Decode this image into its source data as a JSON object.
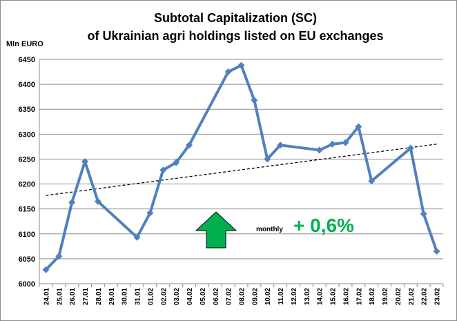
{
  "chart_data": {
    "type": "line",
    "title": [
      "Subtotal Capitalization (SC)",
      "of Ukrainian agri holdings listed on EU exchanges"
    ],
    "ylabel": "Mln EURO",
    "xlabel": "",
    "ylim": [
      6000,
      6450
    ],
    "yticks": [
      6000,
      6050,
      6100,
      6150,
      6200,
      6250,
      6300,
      6350,
      6400,
      6450
    ],
    "categories": [
      "24.01",
      "25.01",
      "26.01",
      "27.01",
      "28.01",
      "29.01",
      "30.01",
      "31.01",
      "01.02",
      "02.02",
      "03.02",
      "04.02",
      "05.02",
      "06.02",
      "07.02",
      "08.02",
      "09.02",
      "10.02",
      "11.02",
      "12.02",
      "13.02",
      "14.02",
      "15.02",
      "16.02",
      "17.02",
      "18.02",
      "19.02",
      "20.02",
      "21.02",
      "22.02",
      "23.02"
    ],
    "series": [
      {
        "values": [
          6028,
          6055,
          6163,
          6245,
          6165,
          null,
          null,
          6093,
          6142,
          6228,
          6243,
          6278,
          null,
          null,
          6425,
          6438,
          6368,
          6250,
          6278,
          null,
          null,
          6268,
          6280,
          6283,
          6315,
          6206,
          null,
          null,
          6272,
          6140,
          6065
        ],
        "color": "#4f81bd",
        "marker": "diamond"
      }
    ],
    "trendline": {
      "style": "dashed",
      "color": "#000000",
      "start": 6177,
      "end": 6280
    },
    "grid": true,
    "legend": "none",
    "annotation": {
      "arrow": "up",
      "arrow_color": "#00b050",
      "label": "monthly",
      "value": "+ 0,6%",
      "value_color": "#00b050"
    }
  }
}
